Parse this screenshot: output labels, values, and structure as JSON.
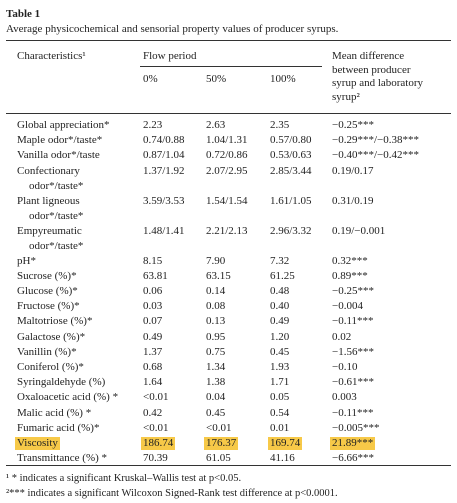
{
  "table": {
    "title": "Table 1",
    "caption": "Average physicochemical and sensorial property values of producer syrups.",
    "header": {
      "characteristics": "Characteristics¹",
      "flow_period": "Flow period",
      "flow_levels": [
        "0%",
        "50%",
        "100%"
      ],
      "mean_difference": [
        "Mean difference",
        "between producer",
        "syrup and laboratory",
        "syrup²"
      ]
    },
    "rows": [
      {
        "label": [
          "Global appreciation*"
        ],
        "cells": [
          "2.23",
          "2.63",
          "2.35",
          "−0.25***"
        ]
      },
      {
        "label": [
          "Maple odor*/taste*"
        ],
        "cells": [
          "0.74/0.88",
          "1.04/1.31",
          "0.57/0.80",
          "−0.29***/−0.38***"
        ]
      },
      {
        "label": [
          "Vanilla odor*/taste"
        ],
        "cells": [
          "0.87/1.04",
          "0.72/0.86",
          "0.53/0.63",
          "−0.40***/−0.42***"
        ]
      },
      {
        "label": [
          "Confectionary",
          "odor*/taste*"
        ],
        "cells": [
          "1.37/1.92",
          "2.07/2.95",
          "2.85/3.44",
          "0.19/0.17"
        ]
      },
      {
        "label": [
          "Plant ligneous",
          "odor*/taste*"
        ],
        "cells": [
          "3.59/3.53",
          "1.54/1.54",
          "1.61/1.05",
          "0.31/0.19"
        ]
      },
      {
        "label": [
          "Empyreumatic",
          "odor*/taste*"
        ],
        "cells": [
          "1.48/1.41",
          "2.21/2.13",
          "2.96/3.32",
          "0.19/−0.001"
        ]
      },
      {
        "label": [
          "pH*"
        ],
        "cells": [
          "8.15",
          "7.90",
          "7.32",
          "0.32***"
        ]
      },
      {
        "label": [
          "Sucrose (%)*"
        ],
        "cells": [
          "63.81",
          "63.15",
          "61.25",
          "0.89***"
        ]
      },
      {
        "label": [
          "Glucose (%)*"
        ],
        "cells": [
          "0.06",
          "0.14",
          "0.48",
          "−0.25***"
        ]
      },
      {
        "label": [
          "Fructose (%)*"
        ],
        "cells": [
          "0.03",
          "0.08",
          "0.40",
          "−0.004"
        ]
      },
      {
        "label": [
          "Maltotriose (%)*"
        ],
        "cells": [
          "0.07",
          "0.13",
          "0.49",
          "−0.11***"
        ]
      },
      {
        "label": [
          "Galactose (%)*"
        ],
        "cells": [
          "0.49",
          "0.95",
          "1.20",
          "0.02"
        ]
      },
      {
        "label": [
          "Vanillin (%)*"
        ],
        "cells": [
          "1.37",
          "0.75",
          "0.45",
          "−1.56***"
        ]
      },
      {
        "label": [
          "Coniferol (%)*"
        ],
        "cells": [
          "0.68",
          "1.34",
          "1.93",
          "−0.10"
        ]
      },
      {
        "label": [
          "Syringaldehyde (%)"
        ],
        "cells": [
          "1.64",
          "1.38",
          "1.71",
          "−0.61***"
        ]
      },
      {
        "label": [
          "Oxaloacetic acid (%) *"
        ],
        "cells": [
          "<0.01",
          "0.04",
          "0.05",
          "0.003"
        ]
      },
      {
        "label": [
          "Malic acid (%) *"
        ],
        "cells": [
          "0.42",
          "0.45",
          "0.54",
          "−0.11***"
        ]
      },
      {
        "label": [
          "Fumaric acid (%)*"
        ],
        "cells": [
          "<0.01",
          "<0.01",
          "0.01",
          "−0.005***"
        ]
      },
      {
        "label": [
          "Viscosity"
        ],
        "cells": [
          "186.74",
          "176.37",
          "169.74",
          "21.89***"
        ],
        "highlight": true
      },
      {
        "label": [
          "Transmittance (%) *"
        ],
        "cells": [
          "70.39",
          "61.05",
          "41.16",
          "−6.66***"
        ]
      }
    ],
    "footnotes": [
      "¹ * indicates a significant Kruskal–Wallis test at p<0.05.",
      "²*** indicates a significant Wilcoxon Signed-Rank test difference at p<0.0001."
    ]
  }
}
